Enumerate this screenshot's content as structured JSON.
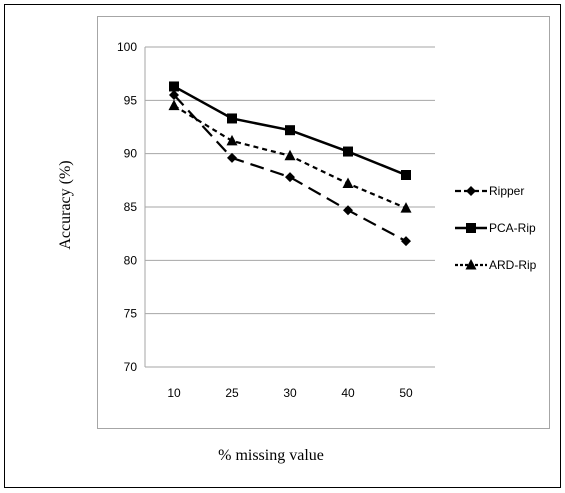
{
  "chart_data": {
    "type": "line",
    "title": "",
    "xlabel": "% missing value",
    "ylabel": "Accuracy (%)",
    "categories": [
      "10",
      "25",
      "30",
      "40",
      "50"
    ],
    "ylim": [
      70,
      100
    ],
    "yticks": [
      70,
      75,
      80,
      85,
      90,
      95,
      100
    ],
    "grid": true,
    "legend_position": "right",
    "series": [
      {
        "name": "Ripper",
        "values": [
          95.5,
          89.6,
          87.8,
          84.7,
          81.8
        ],
        "marker": "diamond",
        "dash": "long-dash",
        "color": "#000000"
      },
      {
        "name": "PCA-Rip",
        "values": [
          96.3,
          93.3,
          92.2,
          90.2,
          88.0
        ],
        "marker": "square",
        "dash": "solid",
        "color": "#000000"
      },
      {
        "name": "ARD-Rip",
        "values": [
          94.5,
          91.2,
          89.8,
          87.2,
          84.9
        ],
        "marker": "triangle",
        "dash": "short-dash",
        "color": "#000000"
      }
    ]
  }
}
